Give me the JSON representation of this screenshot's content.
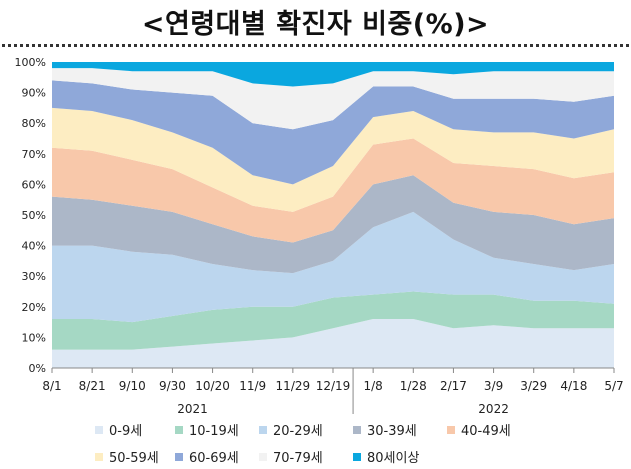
{
  "page": {
    "title": "<연령대별 확진자 비중(%)>"
  },
  "chart_data": {
    "type": "area",
    "stacked": true,
    "normalized_percent": true,
    "ylim": [
      0,
      100
    ],
    "y_ticks": [
      0,
      10,
      20,
      30,
      40,
      50,
      60,
      70,
      80,
      90,
      100
    ],
    "y_tick_suffix": "%",
    "xlabel": "",
    "ylabel": "",
    "x": [
      "8/1",
      "8/21",
      "9/10",
      "9/30",
      "10/20",
      "11/9",
      "11/29",
      "12/19",
      "1/8",
      "1/28",
      "2/17",
      "3/9",
      "3/29",
      "4/18",
      "5/7"
    ],
    "x_tick_labels": [
      "8/1",
      "8/21",
      "9/10",
      "9/30",
      "10/20",
      "11/9",
      "11/29",
      "12/19",
      "1/8",
      "1/28",
      "2/17",
      "3/9",
      "3/29",
      "4/18",
      "5/7"
    ],
    "year_labels": [
      {
        "label": "2021",
        "start_index": 0,
        "end_index": 7
      },
      {
        "label": "2022",
        "start_index": 8,
        "end_index": 14
      }
    ],
    "legend_position": "bottom",
    "series": [
      {
        "name": "0-9세",
        "color": "#dde8f4",
        "values": [
          6,
          6,
          6,
          7,
          8,
          9,
          10,
          13,
          16,
          16,
          13,
          14,
          13,
          13,
          13
        ]
      },
      {
        "name": "10-19세",
        "color": "#a5d8c4",
        "values": [
          10,
          10,
          9,
          10,
          11,
          11,
          10,
          10,
          8,
          9,
          11,
          10,
          9,
          9,
          8
        ]
      },
      {
        "name": "20-29세",
        "color": "#bcd6ee",
        "values": [
          24,
          24,
          23,
          20,
          15,
          12,
          11,
          12,
          22,
          26,
          18,
          12,
          12,
          10,
          13
        ]
      },
      {
        "name": "30-39세",
        "color": "#acb7c8",
        "values": [
          16,
          15,
          15,
          14,
          13,
          11,
          10,
          10,
          14,
          12,
          12,
          15,
          16,
          15,
          15
        ]
      },
      {
        "name": "40-49세",
        "color": "#f8c8aa",
        "values": [
          16,
          16,
          15,
          14,
          12,
          10,
          10,
          11,
          13,
          12,
          13,
          15,
          15,
          15,
          15
        ]
      },
      {
        "name": "50-59세",
        "color": "#fdedc2",
        "values": [
          13,
          13,
          13,
          12,
          13,
          10,
          9,
          10,
          9,
          9,
          11,
          11,
          12,
          13,
          14
        ]
      },
      {
        "name": "60-69세",
        "color": "#8fa8d9",
        "values": [
          9,
          9,
          10,
          13,
          17,
          17,
          18,
          15,
          10,
          8,
          10,
          11,
          11,
          12,
          11
        ]
      },
      {
        "name": "70-79세",
        "color": "#f2f2f2",
        "values": [
          4,
          5,
          6,
          7,
          8,
          13,
          14,
          12,
          5,
          5,
          8,
          9,
          9,
          10,
          8
        ]
      },
      {
        "name": "80세이상",
        "color": "#0aa7df",
        "values": [
          2,
          2,
          3,
          3,
          3,
          7,
          8,
          7,
          3,
          3,
          4,
          3,
          3,
          3,
          3
        ]
      }
    ]
  }
}
